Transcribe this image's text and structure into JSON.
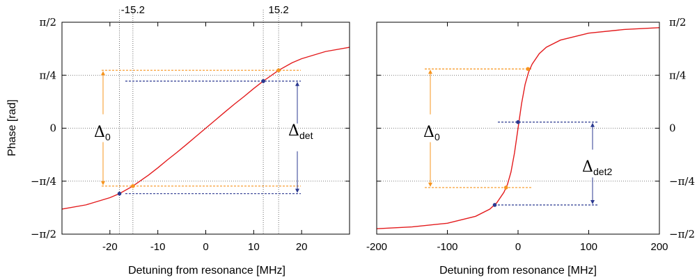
{
  "chart_data": [
    {
      "type": "line",
      "xlabel": "Detuning from resonance [MHz]",
      "ylabel": "Phase [rad]",
      "xlim": [
        -30,
        30
      ],
      "ylim": [
        -1.5708,
        1.5708
      ],
      "xticks": [
        -20,
        -10,
        0,
        10,
        20
      ],
      "xtick_labels": [
        "-20",
        "-10",
        "0",
        "10",
        "20"
      ],
      "yticks": [
        -1.5708,
        -0.7854,
        0,
        0.7854,
        1.5708
      ],
      "ytick_labels": [
        "−π/2",
        "−π/4",
        "0",
        "π/4",
        "π/2"
      ],
      "grid": "dotted horizontal at y ticks",
      "series": [
        {
          "color": "#e31a1c",
          "x": [
            -30,
            -25,
            -20,
            -18,
            -15.2,
            -12,
            -10,
            -8,
            -6,
            -4,
            -2,
            0,
            2,
            4,
            6,
            8,
            10,
            12,
            15.2,
            18,
            20,
            25,
            30
          ],
          "y": [
            -1.199,
            -1.137,
            -1.03,
            -0.97,
            -0.858,
            -0.698,
            -0.588,
            -0.47,
            -0.358,
            -0.24,
            -0.12,
            0,
            0.12,
            0.24,
            0.358,
            0.47,
            0.588,
            0.698,
            0.858,
            0.97,
            1.03,
            1.137,
            1.199
          ]
        }
      ],
      "top_labels": [
        {
          "x": -15.2,
          "text": "-15.2"
        },
        {
          "x": 15.2,
          "text": "15.2"
        }
      ],
      "vertical_lines": [
        -18,
        -15.2,
        12,
        15.2
      ],
      "markers": [
        {
          "x": -18,
          "y": -0.97,
          "color": "#2b3990"
        },
        {
          "x": -15.2,
          "y": -0.858,
          "color": "#f7941d"
        },
        {
          "x": 12,
          "y": 0.698,
          "color": "#2b3990"
        },
        {
          "x": 15.2,
          "y": 0.858,
          "color": "#f7941d"
        }
      ],
      "annotations": [
        {
          "label": "Δ",
          "sub": "0",
          "color": "#f7941d",
          "y_from": -0.858,
          "y_to": 0.858
        },
        {
          "label": "Δ",
          "sub": "det",
          "color": "#2b3990",
          "y_from": -0.97,
          "y_to": 0.698
        }
      ]
    },
    {
      "type": "line",
      "xlabel": "Detuning from resonance [MHz]",
      "ylabel": "",
      "xlim": [
        -200,
        200
      ],
      "ylim": [
        -1.5708,
        1.5708
      ],
      "xticks": [
        -200,
        -100,
        0,
        100,
        200
      ],
      "xtick_labels": [
        "-200",
        "-100",
        "0",
        "100",
        "200"
      ],
      "yticks": [
        -1.5708,
        -0.7854,
        0,
        0.7854,
        1.5708
      ],
      "ytick_labels": [
        "−π/2",
        "−π/4",
        "0",
        "π/4",
        "π/2"
      ],
      "grid": "dotted horizontal at y ticks",
      "series": [
        {
          "color": "#e31a1c",
          "x": [
            -200,
            -150,
            -100,
            -60,
            -40,
            -30,
            -20,
            -15,
            -10,
            -5,
            0,
            5,
            10,
            15,
            20,
            30,
            40,
            60,
            100,
            150,
            200
          ],
          "y": [
            -1.49,
            -1.463,
            -1.409,
            -1.306,
            -1.2,
            -1.105,
            -0.95,
            -0.835,
            -0.65,
            -0.365,
            0,
            0.365,
            0.65,
            0.835,
            0.95,
            1.105,
            1.2,
            1.306,
            1.409,
            1.463,
            1.49
          ]
        }
      ],
      "markers": [
        {
          "x": -33,
          "y": -1.138,
          "color": "#2b3990"
        },
        {
          "x": -17,
          "y": -0.88,
          "color": "#f7941d"
        },
        {
          "x": 0,
          "y": 0.09,
          "color": "#2b3990"
        },
        {
          "x": 14,
          "y": 0.878,
          "color": "#f7941d"
        }
      ],
      "annotations": [
        {
          "label": "Δ",
          "sub": "0",
          "color": "#f7941d",
          "y_from": -0.88,
          "y_to": 0.878
        },
        {
          "label": "Δ",
          "sub": "det2",
          "color": "#2b3990",
          "y_from": -1.138,
          "y_to": 0.09
        }
      ]
    }
  ]
}
